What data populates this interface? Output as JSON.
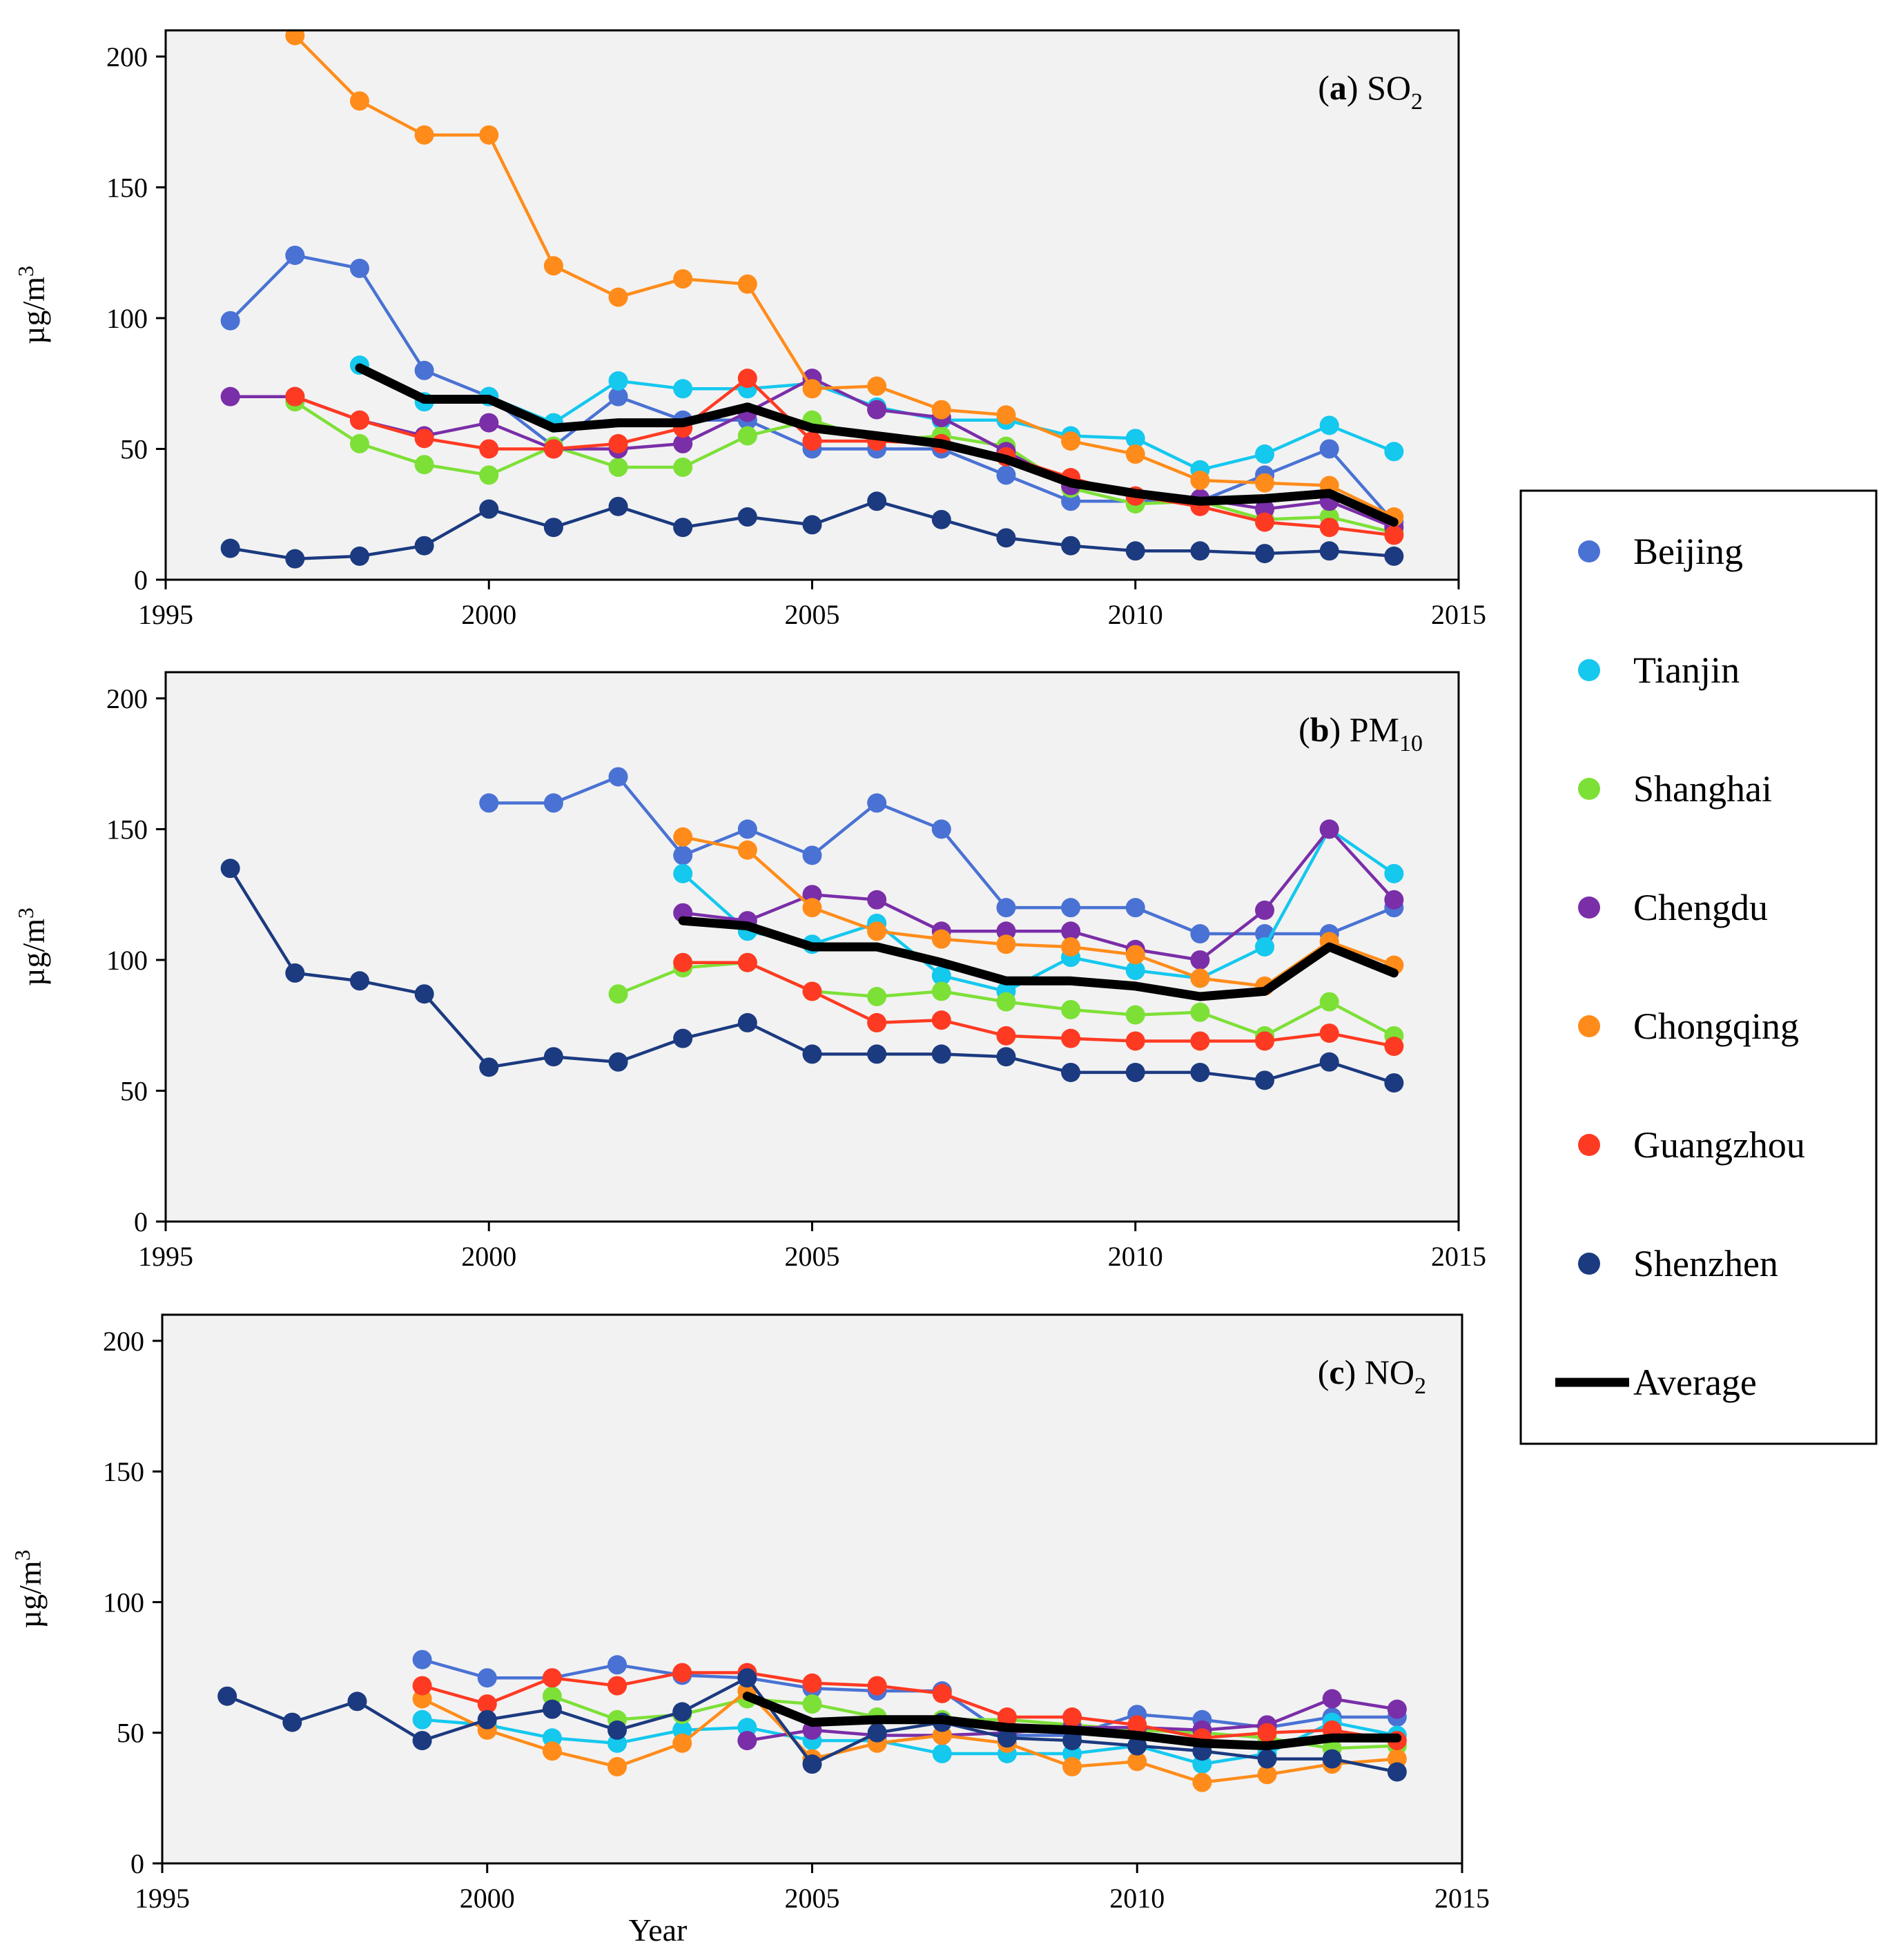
{
  "legend": {
    "entries": [
      "Beijing",
      "Tianjin",
      "Shanghai",
      "Chengdu",
      "Chongqing",
      "Guangzhou",
      "Shenzhen",
      "Average"
    ],
    "placement": "right"
  },
  "shared": {
    "x_label": "Year",
    "y_label": "µg/m",
    "y_label_sup": "3",
    "colors": {
      "Beijing": "#4a72d4",
      "Tianjin": "#14c8ee",
      "Shanghai": "#7de037",
      "Chengdu": "#7a2ea8",
      "Chongqing": "#ff8c1a",
      "Guangzhou": "#ff3a22",
      "Shenzhen": "#1b3a80",
      "Average": "#000000"
    }
  },
  "chart_data": [
    {
      "type": "line",
      "title": "(a) SO",
      "title_bold": "a",
      "title_pollutant": "SO",
      "title_sub": "2",
      "xlim": [
        1995,
        2015
      ],
      "ylim": [
        0,
        210
      ],
      "xticks": [
        1995,
        2000,
        2005,
        2010,
        2015
      ],
      "yticks": [
        0,
        50,
        100,
        150,
        200
      ],
      "series": [
        {
          "name": "Beijing",
          "x": [
            1996,
            1997,
            1998,
            1999,
            2000,
            2001,
            2002,
            2003,
            2004,
            2005,
            2006,
            2007,
            2008,
            2009,
            2010,
            2011,
            2012,
            2013,
            2014
          ],
          "values": [
            99,
            124,
            119,
            80,
            70,
            51,
            70,
            61,
            61,
            50,
            50,
            50,
            40,
            30,
            30,
            30,
            40,
            50,
            22
          ]
        },
        {
          "name": "Tianjin",
          "x": [
            1998,
            1999,
            2000,
            2001,
            2002,
            2003,
            2004,
            2005,
            2006,
            2007,
            2008,
            2009,
            2010,
            2011,
            2012,
            2013,
            2014
          ],
          "values": [
            82,
            68,
            70,
            60,
            76,
            73,
            73,
            75,
            66,
            61,
            61,
            55,
            54,
            42,
            48,
            59,
            49
          ]
        },
        {
          "name": "Shanghai",
          "x": [
            1997,
            1998,
            1999,
            2000,
            2001,
            2002,
            2003,
            2004,
            2005,
            2006,
            2007,
            2008,
            2009,
            2010,
            2011,
            2012,
            2013,
            2014
          ],
          "values": [
            68,
            52,
            44,
            40,
            51,
            43,
            43,
            55,
            61,
            53,
            55,
            51,
            35,
            29,
            30,
            23,
            24,
            18
          ]
        },
        {
          "name": "Chengdu",
          "x": [
            1996,
            1997,
            1998,
            1999,
            2000,
            2001,
            2002,
            2003,
            2004,
            2005,
            2006,
            2007,
            2008,
            2009,
            2010,
            2011,
            2012,
            2013,
            2014
          ],
          "values": [
            70,
            70,
            61,
            55,
            60,
            50,
            50,
            52,
            64,
            77,
            65,
            62,
            49,
            36,
            32,
            31,
            27,
            30,
            20
          ]
        },
        {
          "name": "Chongqing",
          "x": [
            1997,
            1998,
            1999,
            2000,
            2001,
            2002,
            2003,
            2004,
            2005,
            2006,
            2007,
            2008,
            2009,
            2010,
            2011,
            2012,
            2013,
            2014
          ],
          "values": [
            208,
            183,
            170,
            170,
            120,
            108,
            115,
            113,
            73,
            74,
            65,
            63,
            53,
            48,
            38,
            37,
            36,
            24
          ]
        },
        {
          "name": "Guangzhou",
          "x": [
            1997,
            1998,
            1999,
            2000,
            2001,
            2002,
            2003,
            2004,
            2005,
            2006,
            2007,
            2008,
            2009,
            2010,
            2011,
            2012,
            2013,
            2014
          ],
          "values": [
            70,
            61,
            54,
            50,
            50,
            52,
            58,
            77,
            53,
            53,
            52,
            47,
            39,
            32,
            28,
            22,
            20,
            17
          ]
        },
        {
          "name": "Shenzhen",
          "x": [
            1996,
            1997,
            1998,
            1999,
            2000,
            2001,
            2002,
            2003,
            2004,
            2005,
            2006,
            2007,
            2008,
            2009,
            2010,
            2011,
            2012,
            2013,
            2014
          ],
          "values": [
            12,
            8,
            9,
            13,
            27,
            20,
            28,
            20,
            24,
            21,
            30,
            23,
            16,
            13,
            11,
            11,
            10,
            11,
            9
          ]
        },
        {
          "name": "Average",
          "x": [
            1998,
            1999,
            2000,
            2001,
            2002,
            2003,
            2004,
            2005,
            2006,
            2007,
            2008,
            2009,
            2010,
            2011,
            2012,
            2013,
            2014
          ],
          "values": [
            81,
            69,
            69,
            58,
            60,
            60,
            66,
            58,
            55,
            52,
            46,
            37,
            33,
            30,
            31,
            33,
            22
          ]
        }
      ]
    },
    {
      "type": "line",
      "title": "(b) PM",
      "title_bold": "b",
      "title_pollutant": "PM",
      "title_sub": "10",
      "xlim": [
        1995,
        2015
      ],
      "ylim": [
        0,
        210
      ],
      "xticks": [
        1995,
        2000,
        2005,
        2010,
        2015
      ],
      "yticks": [
        0,
        50,
        100,
        150,
        200
      ],
      "series": [
        {
          "name": "Beijing",
          "x": [
            2000,
            2001,
            2002,
            2003,
            2004,
            2005,
            2006,
            2007,
            2008,
            2009,
            2010,
            2011,
            2012,
            2013,
            2014
          ],
          "values": [
            160,
            160,
            170,
            140,
            150,
            140,
            160,
            150,
            120,
            120,
            120,
            110,
            110,
            110,
            120
          ]
        },
        {
          "name": "Tianjin",
          "x": [
            2003,
            2004,
            2005,
            2006,
            2007,
            2008,
            2009,
            2010,
            2011,
            2012,
            2013,
            2014
          ],
          "values": [
            133,
            111,
            106,
            114,
            94,
            88,
            101,
            96,
            93,
            105,
            150,
            133
          ]
        },
        {
          "name": "Shanghai",
          "x": [
            2002,
            2003,
            2004,
            2005,
            2006,
            2007,
            2008,
            2009,
            2010,
            2011,
            2012,
            2013,
            2014
          ],
          "values": [
            87,
            97,
            99,
            88,
            86,
            88,
            84,
            81,
            79,
            80,
            71,
            84,
            71
          ]
        },
        {
          "name": "Chengdu",
          "x": [
            2003,
            2004,
            2005,
            2006,
            2007,
            2008,
            2009,
            2010,
            2011,
            2012,
            2013,
            2014
          ],
          "values": [
            118,
            115,
            125,
            123,
            111,
            111,
            111,
            104,
            100,
            119,
            150,
            123
          ]
        },
        {
          "name": "Chongqing",
          "x": [
            2003,
            2004,
            2005,
            2006,
            2007,
            2008,
            2009,
            2010,
            2011,
            2012,
            2013,
            2014
          ],
          "values": [
            147,
            142,
            120,
            111,
            108,
            106,
            105,
            102,
            93,
            90,
            107,
            98
          ]
        },
        {
          "name": "Guangzhou",
          "x": [
            2003,
            2004,
            2005,
            2006,
            2007,
            2008,
            2009,
            2010,
            2011,
            2012,
            2013,
            2014
          ],
          "values": [
            99,
            99,
            88,
            76,
            77,
            71,
            70,
            69,
            69,
            69,
            72,
            67
          ]
        },
        {
          "name": "Shenzhen",
          "x": [
            1996,
            1997,
            1998,
            1999,
            2000,
            2001,
            2002,
            2003,
            2004,
            2005,
            2006,
            2007,
            2008,
            2009,
            2010,
            2011,
            2012,
            2013,
            2014
          ],
          "values": [
            135,
            95,
            92,
            87,
            59,
            63,
            61,
            70,
            76,
            64,
            64,
            64,
            63,
            57,
            57,
            57,
            54,
            61,
            53
          ]
        },
        {
          "name": "Average",
          "x": [
            2003,
            2004,
            2005,
            2006,
            2007,
            2008,
            2009,
            2010,
            2011,
            2012,
            2013,
            2014
          ],
          "values": [
            115,
            113,
            105,
            105,
            99,
            92,
            92,
            90,
            86,
            88,
            105,
            95
          ]
        }
      ]
    },
    {
      "type": "line",
      "title": "(c) NO",
      "title_bold": "c",
      "title_pollutant": "NO",
      "title_sub": "2",
      "xlim": [
        1995,
        2015
      ],
      "ylim": [
        0,
        210
      ],
      "xticks": [
        1995,
        2000,
        2005,
        2010,
        2015
      ],
      "yticks": [
        0,
        50,
        100,
        150,
        200
      ],
      "series": [
        {
          "name": "Beijing",
          "x": [
            1999,
            2000,
            2001,
            2002,
            2003,
            2004,
            2005,
            2006,
            2007,
            2008,
            2009,
            2010,
            2011,
            2012,
            2013,
            2014
          ],
          "values": [
            78,
            71,
            71,
            76,
            72,
            71,
            67,
            66,
            66,
            49,
            49,
            57,
            55,
            52,
            56,
            56
          ]
        },
        {
          "name": "Tianjin",
          "x": [
            1999,
            2000,
            2001,
            2002,
            2003,
            2004,
            2005,
            2006,
            2007,
            2008,
            2009,
            2010,
            2011,
            2012,
            2013,
            2014
          ],
          "values": [
            55,
            53,
            48,
            46,
            51,
            52,
            47,
            47,
            42,
            42,
            42,
            45,
            38,
            42,
            54,
            49
          ]
        },
        {
          "name": "Shanghai",
          "x": [
            2001,
            2002,
            2003,
            2004,
            2005,
            2006,
            2007,
            2008,
            2009,
            2010,
            2011,
            2012,
            2013,
            2014
          ],
          "values": [
            64,
            55,
            57,
            63,
            61,
            56,
            55,
            55,
            53,
            51,
            50,
            48,
            44,
            45
          ]
        },
        {
          "name": "Chengdu",
          "x": [
            2004,
            2005,
            2006,
            2007,
            2008,
            2009,
            2010,
            2011,
            2012,
            2013,
            2014
          ],
          "values": [
            47,
            51,
            49,
            49,
            50,
            52,
            52,
            51,
            53,
            63,
            59
          ]
        },
        {
          "name": "Chongqing",
          "x": [
            1999,
            2000,
            2001,
            2002,
            2003,
            2004,
            2005,
            2006,
            2007,
            2008,
            2009,
            2010,
            2011,
            2012,
            2013,
            2014
          ],
          "values": [
            63,
            51,
            43,
            37,
            46,
            66,
            40,
            46,
            49,
            46,
            37,
            39,
            31,
            34,
            38,
            40
          ]
        },
        {
          "name": "Guangzhou",
          "x": [
            1999,
            2000,
            2001,
            2002,
            2003,
            2004,
            2005,
            2006,
            2007,
            2008,
            2009,
            2010,
            2011,
            2012,
            2013,
            2014
          ],
          "values": [
            68,
            61,
            71,
            68,
            73,
            73,
            69,
            68,
            65,
            56,
            56,
            53,
            48,
            50,
            51,
            47
          ]
        },
        {
          "name": "Shenzhen",
          "x": [
            1996,
            1997,
            1998,
            1999,
            2000,
            2001,
            2002,
            2003,
            2004,
            2005,
            2006,
            2007,
            2008,
            2009,
            2010,
            2011,
            2012,
            2013,
            2014
          ],
          "values": [
            64,
            54,
            62,
            47,
            55,
            59,
            51,
            58,
            71,
            38,
            50,
            54,
            48,
            47,
            45,
            43,
            40,
            40,
            35
          ]
        },
        {
          "name": "Average",
          "x": [
            2004,
            2005,
            2006,
            2007,
            2008,
            2009,
            2010,
            2011,
            2012,
            2013,
            2014
          ],
          "values": [
            64,
            54,
            55,
            55,
            52,
            51,
            49,
            46,
            45,
            48,
            48
          ]
        }
      ]
    }
  ]
}
